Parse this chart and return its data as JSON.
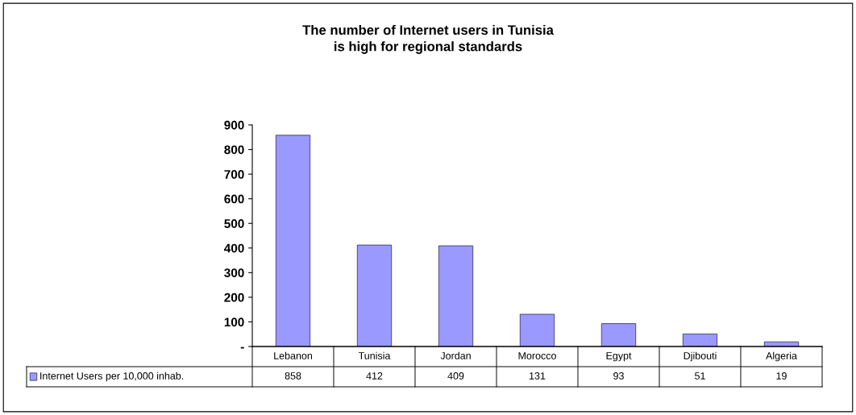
{
  "chart_data": {
    "type": "bar",
    "title": "The number of Internet users in Tunisia\nis high for regional standards",
    "categories": [
      "Lebanon",
      "Tunisia",
      "Jordan",
      "Morocco",
      "Egypt",
      "Djibouti",
      "Algeria"
    ],
    "series": [
      {
        "name": "Internet Users per 10,000 inhab.",
        "color": "#9999ff",
        "values": [
          858,
          412,
          409,
          131,
          93,
          51,
          19
        ]
      }
    ],
    "ylim": [
      0,
      900
    ],
    "yticks": [
      {
        "value": 0,
        "label": "-"
      },
      100,
      200,
      300,
      400,
      500,
      600,
      700,
      800,
      900
    ],
    "data_labels": true,
    "legend": "bottom left",
    "grid": false
  }
}
